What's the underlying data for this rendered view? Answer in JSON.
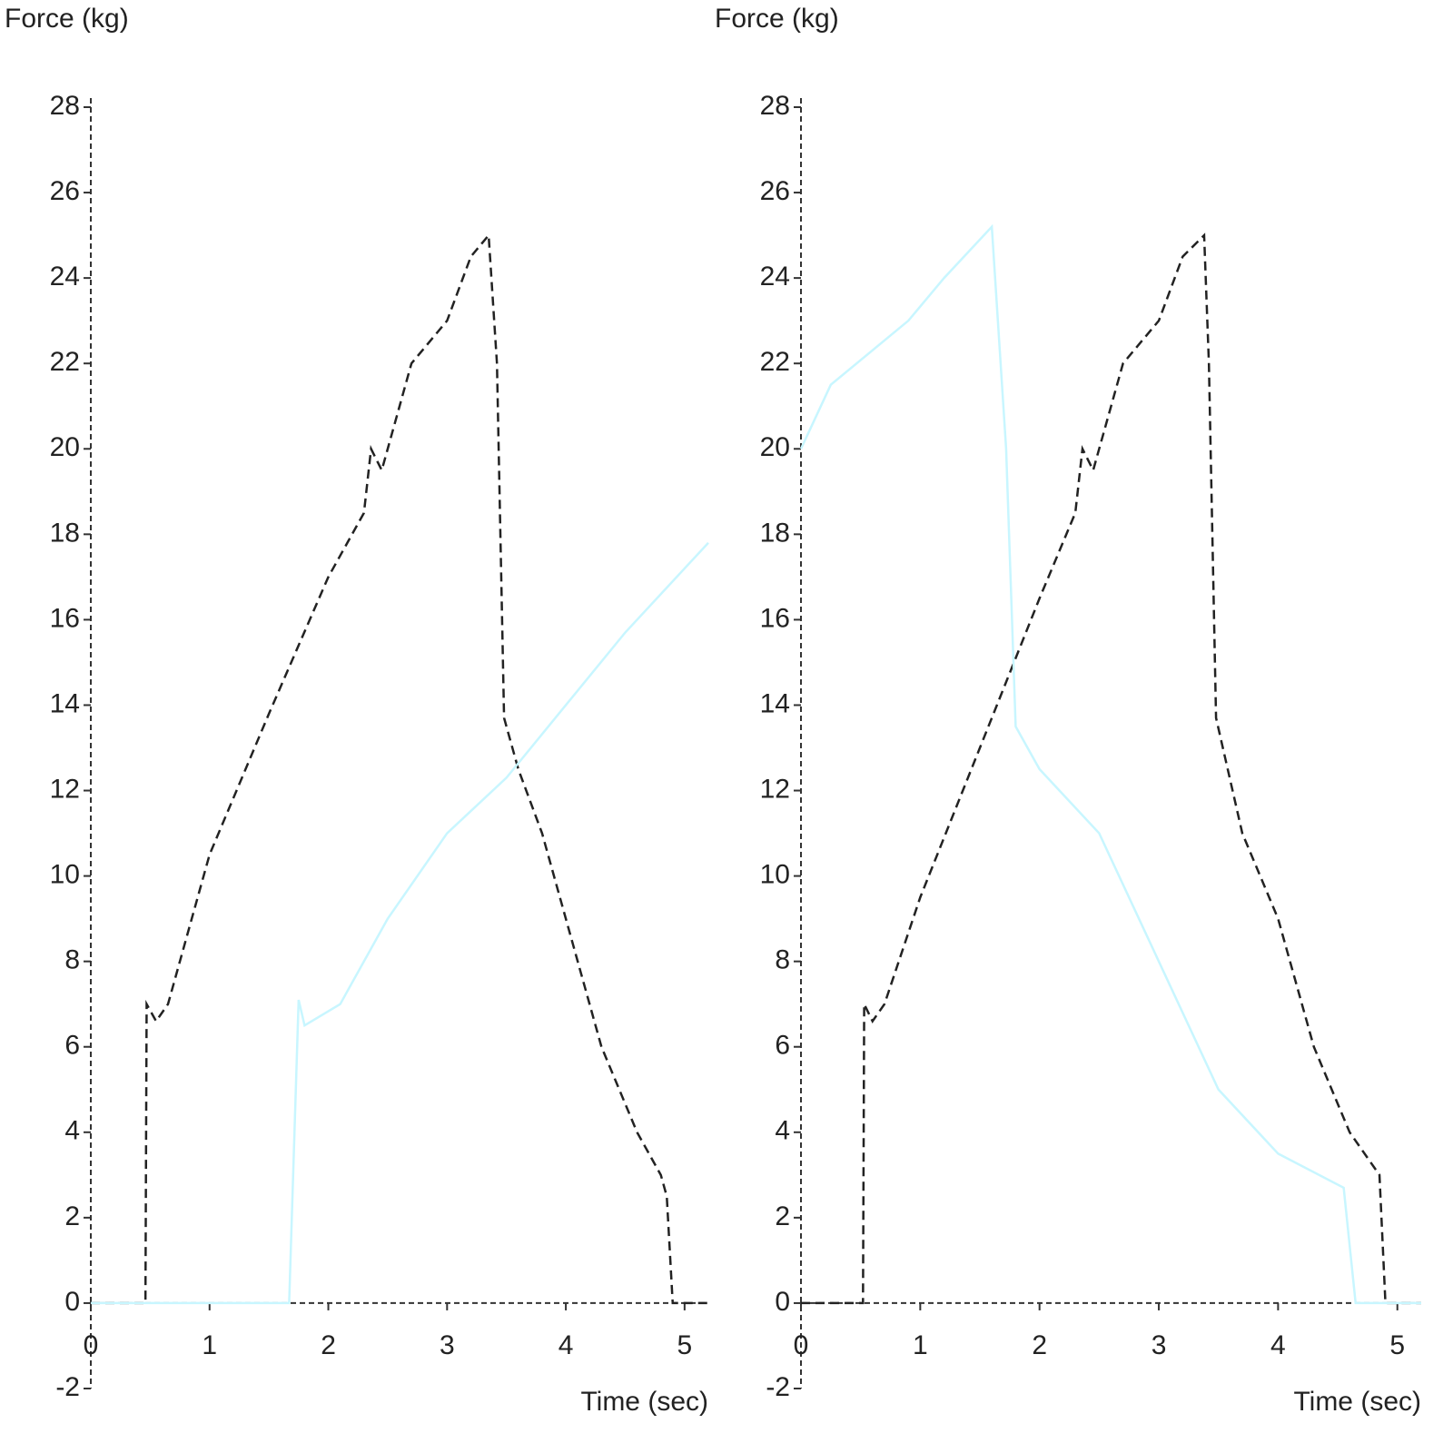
{
  "chart_data": [
    {
      "type": "line",
      "y_label": "Force (kg)",
      "x_label": "Time (sec)",
      "xlim": [
        0,
        5.2
      ],
      "ylim": [
        -2,
        28
      ],
      "xticks": [
        0,
        1,
        2,
        3,
        4,
        5
      ],
      "yticks": [
        -2,
        0,
        2,
        4,
        6,
        8,
        10,
        12,
        14,
        16,
        18,
        20,
        22,
        24,
        26,
        28
      ],
      "series": [
        {
          "color": "#222222",
          "line_style": "dashed",
          "x": [
            0,
            0.46,
            0.47,
            0.55,
            0.65,
            1.0,
            1.5,
            2.0,
            2.3,
            2.36,
            2.45,
            2.7,
            3.0,
            3.2,
            3.35,
            3.42,
            3.48,
            3.6,
            3.8,
            4.0,
            4.3,
            4.6,
            4.8,
            4.85,
            4.9,
            5.2
          ],
          "values": [
            0,
            0,
            7,
            6.6,
            7,
            10.5,
            13.8,
            17,
            18.5,
            20,
            19.5,
            22,
            23,
            24.5,
            25,
            22,
            13.7,
            12.5,
            11,
            9,
            6,
            4,
            3,
            2.5,
            0,
            0
          ]
        },
        {
          "color": "#c8f6ff",
          "line_style": "solid",
          "x": [
            0,
            1.67,
            1.75,
            1.8,
            2.1,
            2.5,
            3.0,
            3.5,
            4.0,
            4.5,
            5.2
          ],
          "values": [
            0,
            0,
            7.1,
            6.5,
            7,
            9,
            11,
            12.3,
            14,
            15.7,
            17.8
          ]
        }
      ]
    },
    {
      "type": "line",
      "y_label": "Force (kg)",
      "x_label": "Time (sec)",
      "xlim": [
        0,
        5.2
      ],
      "ylim": [
        -2,
        28
      ],
      "xticks": [
        0,
        1,
        2,
        3,
        4,
        5
      ],
      "yticks": [
        -2,
        0,
        2,
        4,
        6,
        8,
        10,
        12,
        14,
        16,
        18,
        20,
        22,
        24,
        26,
        28
      ],
      "series": [
        {
          "color": "#222222",
          "line_style": "dashed",
          "x": [
            0,
            0.52,
            0.53,
            0.6,
            0.7,
            1.0,
            1.5,
            2.0,
            2.3,
            2.36,
            2.45,
            2.7,
            3.0,
            3.2,
            3.38,
            3.42,
            3.48,
            3.7,
            4.0,
            4.3,
            4.6,
            4.85,
            4.9,
            5.2
          ],
          "values": [
            0,
            0,
            7,
            6.6,
            7,
            9.5,
            13,
            16.5,
            18.5,
            20,
            19.5,
            22,
            23,
            24.5,
            25,
            22,
            13.7,
            11,
            9,
            6,
            4,
            3,
            0,
            0
          ]
        },
        {
          "color": "#c8f6ff",
          "line_style": "solid",
          "x": [
            0,
            0.25,
            0.9,
            1.2,
            1.6,
            1.72,
            1.8,
            2.0,
            2.5,
            3.0,
            3.5,
            4.0,
            4.55,
            4.65,
            5.2
          ],
          "values": [
            20,
            21.5,
            23,
            24,
            25.2,
            20,
            13.5,
            12.5,
            11,
            8,
            5,
            3.5,
            2.7,
            0,
            0
          ]
        }
      ]
    }
  ]
}
